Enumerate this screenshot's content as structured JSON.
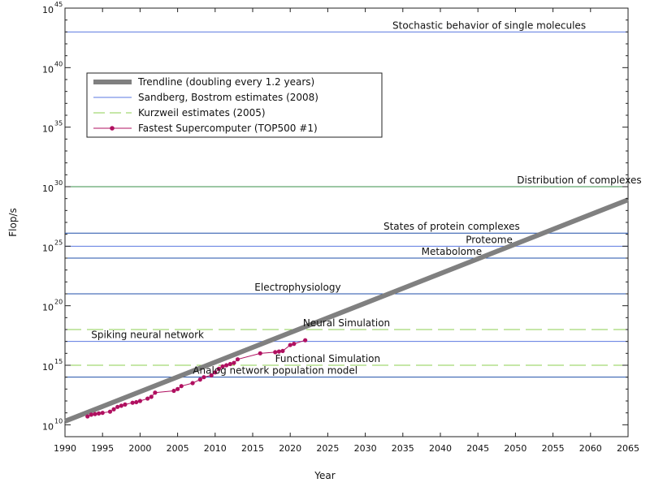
{
  "chart_data": {
    "type": "line",
    "ylabel": "Flop/s",
    "xlabel": "Year",
    "xlim": [
      1990,
      2065
    ],
    "ylim_log10": [
      9,
      45
    ],
    "y_scale": "log",
    "x_ticks": [
      1990,
      1995,
      2000,
      2005,
      2010,
      2015,
      2020,
      2025,
      2030,
      2035,
      2040,
      2045,
      2050,
      2055,
      2060,
      2065
    ],
    "y_ticks_exp": [
      10,
      15,
      20,
      25,
      30,
      35,
      40,
      45
    ],
    "legend_position": "top-left",
    "legend": [
      "Trendline (doubling every 1.2 years)",
      "Sandberg, Bostrom estimates (2008)",
      "Kurzweil estimates (2005)",
      "Fastest Supercomputer (TOP500 #1)"
    ],
    "trendline": {
      "name": "Trendline (doubling every 1.2 years)",
      "color": "#808080",
      "points": [
        [
          1990,
          10.3
        ],
        [
          2065,
          28.9
        ]
      ]
    },
    "reference_lines": [
      {
        "label": "Stochastic behavior of single molecules",
        "log10": 43,
        "color": "#5b79e0",
        "style": "solid",
        "label_x": 2046.5
      },
      {
        "label": "Distribution of complexes",
        "log10": 30,
        "color": "#3a8f4a",
        "style": "solid",
        "label_x": 2058.5
      },
      {
        "label": "States of protein complexes",
        "log10": 26.1,
        "color": "#1f4fa8",
        "style": "solid",
        "label_x": 2041.5
      },
      {
        "label": "Proteome",
        "log10": 25,
        "color": "#5b79e0",
        "style": "solid",
        "label_x": 2046.5
      },
      {
        "label": "Metabolome",
        "log10": 24,
        "color": "#1f4fa8",
        "style": "solid",
        "label_x": 2041.5
      },
      {
        "label": "Electrophysiology",
        "log10": 21,
        "color": "#1f4fa8",
        "style": "solid",
        "label_x": 2021
      },
      {
        "label": "Neural Simulation",
        "log10": 18,
        "color": "#8ccf50",
        "style": "dashed",
        "label_x": 2027.5
      },
      {
        "label": "Spiking neural network",
        "log10": 17,
        "color": "#5b79e0",
        "style": "solid",
        "label_x": 2001
      },
      {
        "label": "Functional Simulation",
        "log10": 15,
        "color": "#8ccf50",
        "style": "dashed",
        "label_x": 2025
      },
      {
        "label": "Analog network population model",
        "log10": 14,
        "color": "#1f4fa8",
        "style": "solid",
        "label_x": 2018
      }
    ],
    "series": [
      {
        "name": "Fastest Supercomputer (TOP500 #1)",
        "color": "#b01060",
        "x": [
          1993,
          1993.5,
          1994,
          1994.5,
          1995,
          1996,
          1996.5,
          1997,
          1997.5,
          1998,
          1999,
          1999.5,
          2000,
          2001,
          2001.5,
          2002,
          2004.5,
          2005,
          2005.5,
          2007,
          2008,
          2008.5,
          2009.5,
          2010,
          2010.5,
          2011,
          2011.5,
          2012,
          2012.5,
          2013,
          2016,
          2018,
          2018.5,
          2019,
          2020,
          2020.5,
          2022
        ],
        "y_log10": [
          10.7,
          10.85,
          10.9,
          10.95,
          11,
          11.1,
          11.3,
          11.5,
          11.6,
          11.7,
          11.85,
          11.9,
          12,
          12.2,
          12.35,
          12.7,
          12.85,
          13,
          13.25,
          13.5,
          13.8,
          14,
          14.15,
          14.4,
          14.7,
          14.9,
          15.0,
          15.1,
          15.2,
          15.5,
          16,
          16.1,
          16.15,
          16.2,
          16.7,
          16.8,
          17.1
        ]
      }
    ]
  }
}
